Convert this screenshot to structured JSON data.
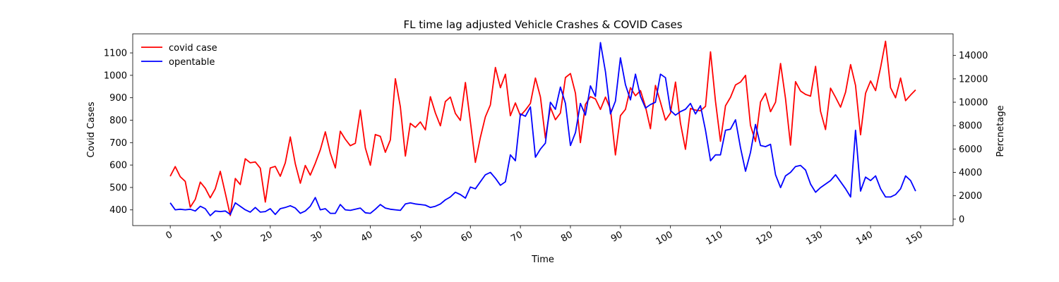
{
  "chart_data": {
    "type": "line",
    "title": "FL time lag adjusted Vehicle Crashes & COVID Cases",
    "xlabel": "Time",
    "ylabel": "Covid Cases",
    "ylabel_right": "Percnetage",
    "xlim": [
      -7.5,
      156.5
    ],
    "ylim": [
      330,
      1185
    ],
    "ylim_right": [
      -550,
      15850
    ],
    "x_ticks": [
      0,
      10,
      20,
      30,
      40,
      50,
      60,
      70,
      80,
      90,
      100,
      110,
      120,
      130,
      140,
      150
    ],
    "y_ticks": [
      400,
      500,
      600,
      700,
      800,
      900,
      1000,
      1100
    ],
    "y_ticks_right": [
      0,
      2000,
      4000,
      6000,
      8000,
      10000,
      12000,
      14000
    ],
    "grid": false,
    "legend_position": "top-left",
    "series": [
      {
        "name": "covid case",
        "axis": "left",
        "color": "#ff0000",
        "x_start": 0,
        "values": [
          550,
          593,
          548,
          527,
          412,
          447,
          524,
          497,
          454,
          494,
          572,
          475,
          375,
          540,
          513,
          628,
          610,
          614,
          586,
          435,
          587,
          594,
          550,
          610,
          725,
          605,
          519,
          598,
          555,
          608,
          668,
          748,
          653,
          587,
          751,
          715,
          686,
          697,
          845,
          676,
          599,
          736,
          728,
          657,
          712,
          985,
          859,
          640,
          786,
          768,
          792,
          757,
          905,
          832,
          775,
          883,
          903,
          830,
          799,
          968,
          793,
          612,
          723,
          815,
          868,
          1035,
          945,
          1005,
          820,
          877,
          820,
          845,
          875,
          988,
          903,
          720,
          857,
          802,
          832,
          990,
          1008,
          920,
          700,
          870,
          905,
          895,
          848,
          903,
          849,
          645,
          820,
          848,
          945,
          909,
          932,
          860,
          762,
          955,
          880,
          800,
          832,
          970,
          787,
          670,
          852,
          845,
          842,
          862,
          1105,
          885,
          706,
          864,
          902,
          957,
          970,
          1000,
          777,
          705,
          881,
          920,
          838,
          880,
          1053,
          897,
          689,
          972,
          930,
          915,
          907,
          1040,
          840,
          758,
          943,
          902,
          858,
          925,
          1048,
          955,
          735,
          920,
          975,
          932,
          1035,
          1152,
          945,
          900,
          988,
          887,
          912,
          935
        ]
      },
      {
        "name": "opentable",
        "axis": "right",
        "color": "#0000ff",
        "x_start": 0,
        "values": [
          1400,
          800,
          850,
          800,
          850,
          700,
          1100,
          900,
          300,
          700,
          650,
          700,
          400,
          1400,
          1100,
          800,
          600,
          1000,
          600,
          650,
          900,
          400,
          900,
          1000,
          1150,
          950,
          500,
          700,
          1100,
          1850,
          800,
          900,
          500,
          500,
          1250,
          800,
          750,
          850,
          950,
          550,
          500,
          850,
          1250,
          950,
          850,
          800,
          750,
          1300,
          1400,
          1300,
          1250,
          1200,
          1000,
          1100,
          1300,
          1650,
          1900,
          2300,
          2100,
          1800,
          2750,
          2600,
          3200,
          3800,
          4000,
          3500,
          2900,
          3200,
          5500,
          5000,
          9000,
          8800,
          9600,
          5300,
          6000,
          6500,
          10000,
          9400,
          11300,
          9900,
          6300,
          7400,
          9900,
          8900,
          11400,
          10500,
          15100,
          12600,
          9000,
          10100,
          13800,
          11500,
          10200,
          12400,
          10500,
          9500,
          9800,
          10000,
          12400,
          12100,
          9300,
          8900,
          9200,
          9400,
          9900,
          9000,
          9700,
          7600,
          5000,
          5500,
          5500,
          7600,
          7700,
          8500,
          6100,
          4100,
          5700,
          8100,
          6300,
          6200,
          6400,
          3800,
          2700,
          3700,
          4000,
          4500,
          4600,
          4200,
          3000,
          2300,
          2700,
          3000,
          3300,
          3800,
          3200,
          2600,
          1900,
          7600,
          2400,
          3600,
          3300,
          3700,
          2600,
          1900,
          1900,
          2100,
          2600,
          3700,
          3300,
          2400
        ]
      }
    ]
  }
}
